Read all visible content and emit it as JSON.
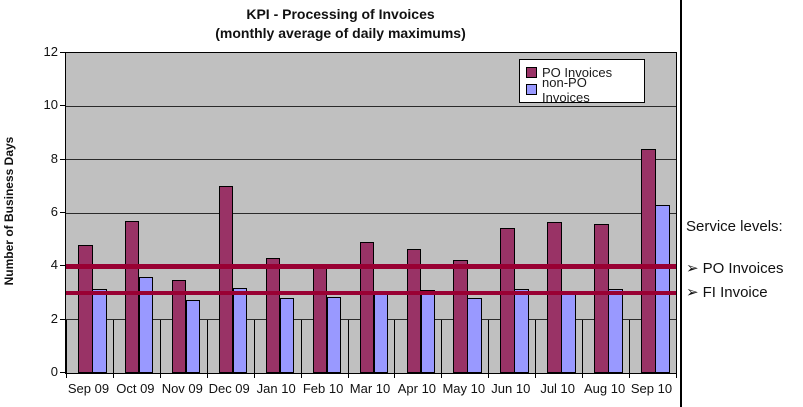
{
  "title": {
    "line1": "KPI - Processing of Invoices",
    "line2": "(monthly average of daily maximums)"
  },
  "y_axis": {
    "title": "Number of Business Days",
    "ticks": [
      0,
      2,
      4,
      6,
      8,
      10,
      12
    ]
  },
  "legend": {
    "items": [
      {
        "label": "PO Invoices",
        "color": "#993366"
      },
      {
        "label": "non-PO Invoices",
        "color": "#9999FF"
      }
    ]
  },
  "side_panel": {
    "heading": "Service levels:",
    "bullet": "➢",
    "items": [
      "PO Invoices",
      "FI Invoice"
    ]
  },
  "chart_data": {
    "type": "bar",
    "title": "KPI - Processing of Invoices (monthly average of daily maximums)",
    "xlabel": "",
    "ylabel": "Number of Business Days",
    "ylim": [
      0,
      12
    ],
    "gridlines": [
      2,
      4,
      6,
      8,
      10
    ],
    "grid_on": true,
    "plot_background": "#C0C0C0",
    "legend_position": "top-right-inside",
    "categories": [
      "Sep 09",
      "Oct 09",
      "Nov 09",
      "Dec 09",
      "Jan 10",
      "Feb 10",
      "Mar 10",
      "Apr 10",
      "May 10",
      "Jun 10",
      "Jul 10",
      "Aug 10",
      "Sep 10"
    ],
    "series": [
      {
        "name": "PO Invoices",
        "color": "#993366",
        "values": [
          4.8,
          5.7,
          3.5,
          7.0,
          4.3,
          4.1,
          4.9,
          4.65,
          4.25,
          5.45,
          5.65,
          5.6,
          8.4
        ]
      },
      {
        "name": "non-PO Invoices",
        "color": "#9999FF",
        "values": [
          3.15,
          3.6,
          2.75,
          3.2,
          2.8,
          2.85,
          3.05,
          3.1,
          2.8,
          3.15,
          3.05,
          3.15,
          6.3
        ]
      }
    ],
    "reference_lines": [
      {
        "label": "PO Invoices service level",
        "value": 4,
        "color": "#990033",
        "thickness": 5
      },
      {
        "label": "FI Invoice service level",
        "value": 3,
        "color": "#990033",
        "thickness": 4
      }
    ]
  }
}
